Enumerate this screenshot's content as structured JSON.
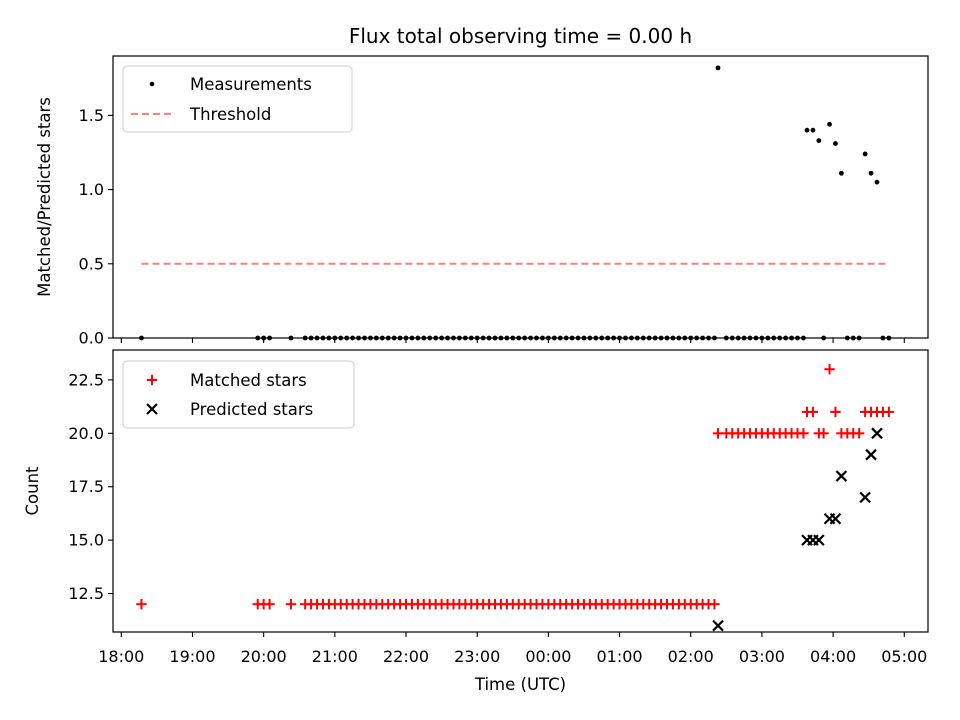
{
  "chart_data": [
    {
      "type": "scatter",
      "title": "Flux total observing time = 0.00 h",
      "ylabel": "Matched/Predicted stars",
      "ylim": [
        0,
        1.9
      ],
      "yticks": [
        "0.0",
        "0.5",
        "1.0",
        "1.5"
      ],
      "threshold": {
        "name": "Threshold",
        "value": 0.5,
        "x_start": "18:17",
        "x_end": "04:47",
        "color": "#ff7f7f"
      },
      "series": [
        {
          "name": "Measurements",
          "color": "#000000",
          "points": [
            [
              "18:17",
              0
            ],
            [
              "19:55",
              0
            ],
            [
              "20:00",
              0
            ],
            [
              "20:05",
              0
            ],
            [
              "20:23",
              0
            ],
            [
              "20:35",
              0
            ],
            [
              "20:40",
              0
            ],
            [
              "20:45",
              0
            ],
            [
              "20:50",
              0
            ],
            [
              "20:55",
              0
            ],
            [
              "21:00",
              0
            ],
            [
              "21:05",
              0
            ],
            [
              "21:10",
              0
            ],
            [
              "21:15",
              0
            ],
            [
              "21:20",
              0
            ],
            [
              "21:25",
              0
            ],
            [
              "21:30",
              0
            ],
            [
              "21:35",
              0
            ],
            [
              "21:40",
              0
            ],
            [
              "21:45",
              0
            ],
            [
              "21:50",
              0
            ],
            [
              "21:55",
              0
            ],
            [
              "22:00",
              0
            ],
            [
              "22:05",
              0
            ],
            [
              "22:10",
              0
            ],
            [
              "22:15",
              0
            ],
            [
              "22:20",
              0
            ],
            [
              "22:25",
              0
            ],
            [
              "22:30",
              0
            ],
            [
              "22:35",
              0
            ],
            [
              "22:40",
              0
            ],
            [
              "22:45",
              0
            ],
            [
              "22:50",
              0
            ],
            [
              "22:55",
              0
            ],
            [
              "23:00",
              0
            ],
            [
              "23:05",
              0
            ],
            [
              "23:10",
              0
            ],
            [
              "23:15",
              0
            ],
            [
              "23:20",
              0
            ],
            [
              "23:25",
              0
            ],
            [
              "23:30",
              0
            ],
            [
              "23:35",
              0
            ],
            [
              "23:40",
              0
            ],
            [
              "23:45",
              0
            ],
            [
              "23:50",
              0
            ],
            [
              "23:55",
              0
            ],
            [
              "00:00",
              0
            ],
            [
              "00:05",
              0
            ],
            [
              "00:10",
              0
            ],
            [
              "00:15",
              0
            ],
            [
              "00:20",
              0
            ],
            [
              "00:25",
              0
            ],
            [
              "00:30",
              0
            ],
            [
              "00:35",
              0
            ],
            [
              "00:40",
              0
            ],
            [
              "00:45",
              0
            ],
            [
              "00:50",
              0
            ],
            [
              "00:55",
              0
            ],
            [
              "01:00",
              0
            ],
            [
              "01:05",
              0
            ],
            [
              "01:10",
              0
            ],
            [
              "01:15",
              0
            ],
            [
              "01:20",
              0
            ],
            [
              "01:25",
              0
            ],
            [
              "01:30",
              0
            ],
            [
              "01:35",
              0
            ],
            [
              "01:40",
              0
            ],
            [
              "01:45",
              0
            ],
            [
              "01:50",
              0
            ],
            [
              "01:55",
              0
            ],
            [
              "02:00",
              0
            ],
            [
              "02:05",
              0
            ],
            [
              "02:10",
              0
            ],
            [
              "02:15",
              0
            ],
            [
              "02:20",
              0
            ],
            [
              "02:23",
              1.82
            ],
            [
              "02:30",
              0
            ],
            [
              "02:35",
              0
            ],
            [
              "02:40",
              0
            ],
            [
              "02:45",
              0
            ],
            [
              "02:50",
              0
            ],
            [
              "02:55",
              0
            ],
            [
              "03:00",
              0
            ],
            [
              "03:05",
              0
            ],
            [
              "03:10",
              0
            ],
            [
              "03:15",
              0
            ],
            [
              "03:20",
              0
            ],
            [
              "03:25",
              0
            ],
            [
              "03:30",
              0
            ],
            [
              "03:35",
              0
            ],
            [
              "03:38",
              1.4
            ],
            [
              "03:43",
              1.4
            ],
            [
              "03:48",
              1.33
            ],
            [
              "03:52",
              0
            ],
            [
              "03:57",
              1.44
            ],
            [
              "04:02",
              1.31
            ],
            [
              "04:07",
              1.11
            ],
            [
              "04:12",
              0
            ],
            [
              "04:17",
              0
            ],
            [
              "04:22",
              0
            ],
            [
              "04:27",
              1.24
            ],
            [
              "04:32",
              1.11
            ],
            [
              "04:37",
              1.05
            ],
            [
              "04:42",
              0
            ],
            [
              "04:47",
              0
            ]
          ]
        }
      ]
    },
    {
      "type": "scatter",
      "title": "",
      "xlabel": "Time (UTC)",
      "ylabel": "Count",
      "ylim": [
        10.7,
        23.9
      ],
      "yticks": [
        "12.5",
        "15.0",
        "17.5",
        "20.0",
        "22.5"
      ],
      "xticks": [
        "18:00",
        "19:00",
        "20:00",
        "21:00",
        "22:00",
        "23:00",
        "00:00",
        "01:00",
        "02:00",
        "03:00",
        "04:00",
        "05:00"
      ],
      "x_range": [
        "17:53",
        "05:20"
      ],
      "series": [
        {
          "name": "Matched stars",
          "marker": "plus",
          "color": "#ff0000",
          "points": [
            [
              "18:17",
              12
            ],
            [
              "19:55",
              12
            ],
            [
              "20:00",
              12
            ],
            [
              "20:05",
              12
            ],
            [
              "20:23",
              12
            ],
            [
              "20:35",
              12
            ],
            [
              "20:40",
              12
            ],
            [
              "20:45",
              12
            ],
            [
              "20:50",
              12
            ],
            [
              "20:55",
              12
            ],
            [
              "21:00",
              12
            ],
            [
              "21:05",
              12
            ],
            [
              "21:10",
              12
            ],
            [
              "21:15",
              12
            ],
            [
              "21:20",
              12
            ],
            [
              "21:25",
              12
            ],
            [
              "21:30",
              12
            ],
            [
              "21:35",
              12
            ],
            [
              "21:40",
              12
            ],
            [
              "21:45",
              12
            ],
            [
              "21:50",
              12
            ],
            [
              "21:55",
              12
            ],
            [
              "22:00",
              12
            ],
            [
              "22:05",
              12
            ],
            [
              "22:10",
              12
            ],
            [
              "22:15",
              12
            ],
            [
              "22:20",
              12
            ],
            [
              "22:25",
              12
            ],
            [
              "22:30",
              12
            ],
            [
              "22:35",
              12
            ],
            [
              "22:40",
              12
            ],
            [
              "22:45",
              12
            ],
            [
              "22:50",
              12
            ],
            [
              "22:55",
              12
            ],
            [
              "23:00",
              12
            ],
            [
              "23:05",
              12
            ],
            [
              "23:10",
              12
            ],
            [
              "23:15",
              12
            ],
            [
              "23:20",
              12
            ],
            [
              "23:25",
              12
            ],
            [
              "23:30",
              12
            ],
            [
              "23:35",
              12
            ],
            [
              "23:40",
              12
            ],
            [
              "23:45",
              12
            ],
            [
              "23:50",
              12
            ],
            [
              "23:55",
              12
            ],
            [
              "00:00",
              12
            ],
            [
              "00:05",
              12
            ],
            [
              "00:10",
              12
            ],
            [
              "00:15",
              12
            ],
            [
              "00:20",
              12
            ],
            [
              "00:25",
              12
            ],
            [
              "00:30",
              12
            ],
            [
              "00:35",
              12
            ],
            [
              "00:40",
              12
            ],
            [
              "00:45",
              12
            ],
            [
              "00:50",
              12
            ],
            [
              "00:55",
              12
            ],
            [
              "01:00",
              12
            ],
            [
              "01:05",
              12
            ],
            [
              "01:10",
              12
            ],
            [
              "01:15",
              12
            ],
            [
              "01:20",
              12
            ],
            [
              "01:25",
              12
            ],
            [
              "01:30",
              12
            ],
            [
              "01:35",
              12
            ],
            [
              "01:40",
              12
            ],
            [
              "01:45",
              12
            ],
            [
              "01:50",
              12
            ],
            [
              "01:55",
              12
            ],
            [
              "02:00",
              12
            ],
            [
              "02:05",
              12
            ],
            [
              "02:10",
              12
            ],
            [
              "02:15",
              12
            ],
            [
              "02:20",
              12
            ],
            [
              "02:23",
              20
            ],
            [
              "02:30",
              20
            ],
            [
              "02:35",
              20
            ],
            [
              "02:40",
              20
            ],
            [
              "02:45",
              20
            ],
            [
              "02:50",
              20
            ],
            [
              "02:55",
              20
            ],
            [
              "03:00",
              20
            ],
            [
              "03:05",
              20
            ],
            [
              "03:10",
              20
            ],
            [
              "03:15",
              20
            ],
            [
              "03:20",
              20
            ],
            [
              "03:25",
              20
            ],
            [
              "03:30",
              20
            ],
            [
              "03:35",
              20
            ],
            [
              "03:38",
              21
            ],
            [
              "03:43",
              21
            ],
            [
              "03:48",
              20
            ],
            [
              "03:52",
              20
            ],
            [
              "03:57",
              23
            ],
            [
              "04:02",
              21
            ],
            [
              "04:07",
              20
            ],
            [
              "04:12",
              20
            ],
            [
              "04:17",
              20
            ],
            [
              "04:22",
              20
            ],
            [
              "04:27",
              21
            ],
            [
              "04:32",
              21
            ],
            [
              "04:37",
              21
            ],
            [
              "04:42",
              21
            ],
            [
              "04:47",
              21
            ]
          ]
        },
        {
          "name": "Predicted stars",
          "marker": "x",
          "color": "#000000",
          "points": [
            [
              "02:23",
              11
            ],
            [
              "03:38",
              15
            ],
            [
              "03:43",
              15
            ],
            [
              "03:48",
              15
            ],
            [
              "03:57",
              16
            ],
            [
              "04:02",
              16
            ],
            [
              "04:07",
              18
            ],
            [
              "04:27",
              17
            ],
            [
              "04:32",
              19
            ],
            [
              "04:37",
              20
            ]
          ]
        }
      ]
    }
  ]
}
